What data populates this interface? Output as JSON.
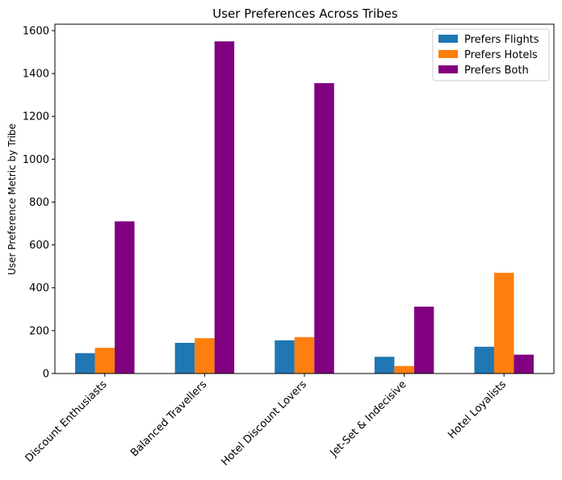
{
  "chart_data": {
    "type": "bar",
    "title": "User Preferences Across Tribes",
    "xlabel": "",
    "ylabel": "User Preference Metric by Tribe",
    "categories": [
      "Discount Enthusiasts",
      "Balanced Travellers",
      "Hotel Discount Lovers",
      "Jet-Set & Indecisive",
      "Hotel Loyalists"
    ],
    "series": [
      {
        "name": "Prefers Flights",
        "color": "#1f77b4",
        "values": [
          95,
          143,
          155,
          78,
          125
        ]
      },
      {
        "name": "Prefers Hotels",
        "color": "#ff7f0e",
        "values": [
          120,
          165,
          170,
          35,
          470
        ]
      },
      {
        "name": "Prefers Both",
        "color": "#800080",
        "values": [
          710,
          1550,
          1355,
          312,
          88
        ]
      }
    ],
    "ylim": [
      0,
      1630
    ],
    "yticks": [
      0,
      200,
      400,
      600,
      800,
      1000,
      1200,
      1400,
      1600
    ],
    "grid": false,
    "legend_position": "top-right"
  }
}
